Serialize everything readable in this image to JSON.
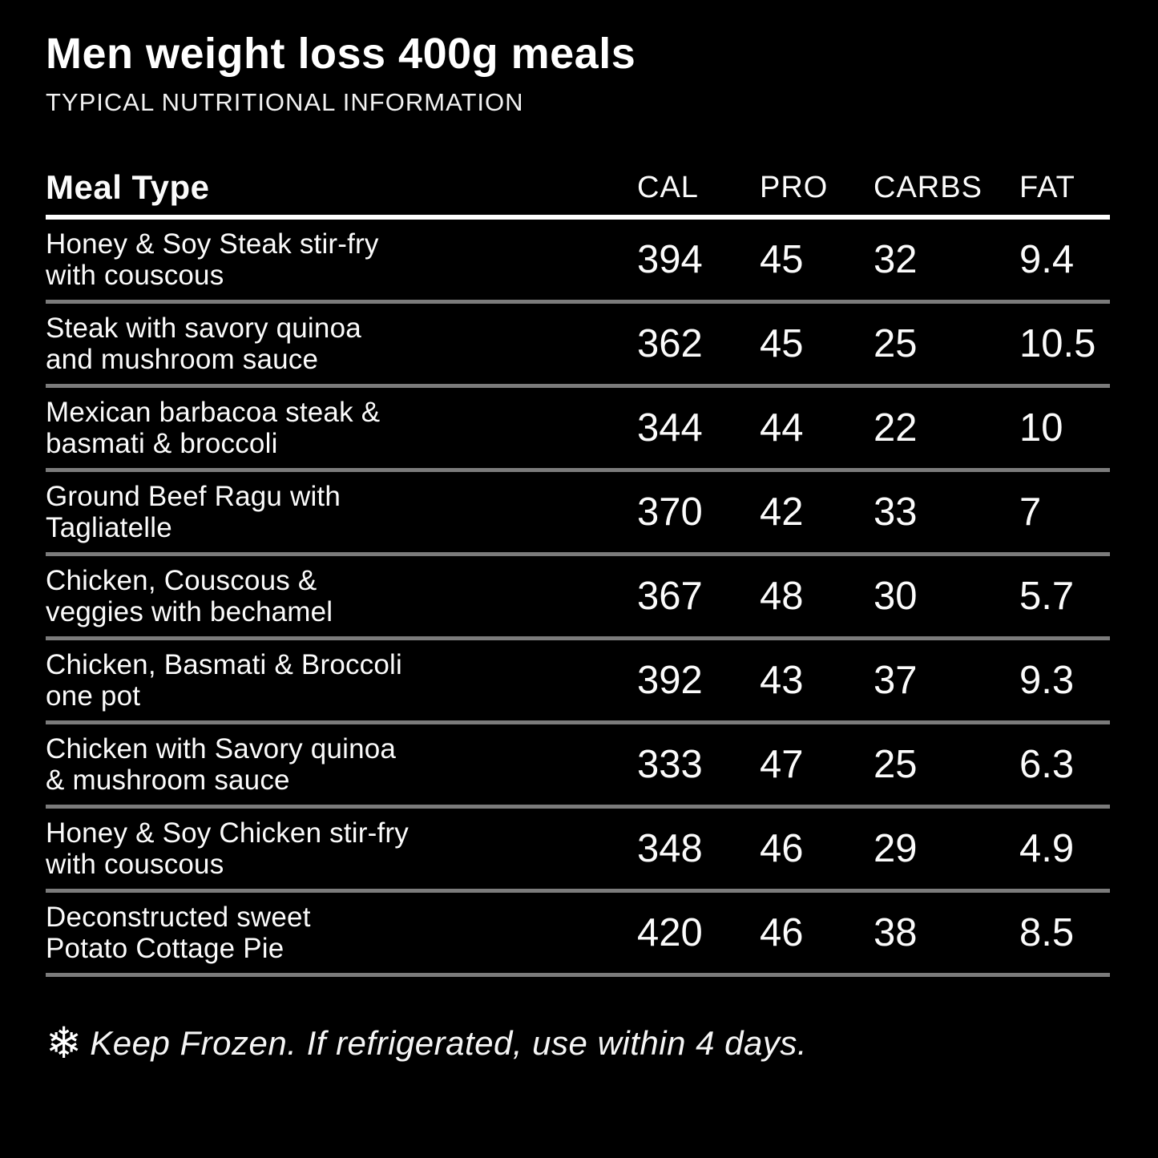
{
  "page": {
    "background": "#000000",
    "text_color": "#FBFBFB"
  },
  "header": {
    "title": "Men weight loss 400g meals",
    "subtitle": "TYPICAL NUTRITIONAL INFORMATION"
  },
  "table": {
    "meal_type_header": "Meal Type",
    "columns": [
      "CAL",
      "PRO",
      "CARBS",
      "FAT"
    ],
    "rows": [
      {
        "name_line1": "Honey & Soy Steak stir-fry",
        "name_line2": "with couscous",
        "cal": "394",
        "pro": "45",
        "carbs": "32",
        "fat": "9.4"
      },
      {
        "name_line1": "Steak with savory quinoa",
        "name_line2": "and mushroom sauce",
        "cal": "362",
        "pro": "45",
        "carbs": "25",
        "fat": "10.5"
      },
      {
        "name_line1": "Mexican barbacoa steak &",
        "name_line2": "basmati & broccoli",
        "cal": "344",
        "pro": "44",
        "carbs": "22",
        "fat": "10"
      },
      {
        "name_line1": "Ground Beef Ragu with",
        "name_line2": "Tagliatelle",
        "cal": "370",
        "pro": "42",
        "carbs": "33",
        "fat": "7"
      },
      {
        "name_line1": "Chicken, Couscous &",
        "name_line2": "veggies with bechamel",
        "cal": "367",
        "pro": "48",
        "carbs": "30",
        "fat": "5.7"
      },
      {
        "name_line1": "Chicken, Basmati & Broccoli",
        "name_line2": "one pot",
        "cal": "392",
        "pro": "43",
        "carbs": "37",
        "fat": "9.3"
      },
      {
        "name_line1": "Chicken with Savory quinoa",
        "name_line2": "& mushroom sauce",
        "cal": "333",
        "pro": "47",
        "carbs": "25",
        "fat": "6.3"
      },
      {
        "name_line1": "Honey & Soy Chicken stir-fry",
        "name_line2": "with couscous",
        "cal": "348",
        "pro": "46",
        "carbs": "29",
        "fat": "4.9"
      },
      {
        "name_line1": "Deconstructed sweet",
        "name_line2": "Potato Cottage Pie",
        "cal": "420",
        "pro": "46",
        "carbs": "38",
        "fat": "8.5"
      }
    ]
  },
  "footer": {
    "icon": "snowflake",
    "icon_glyph": "❄",
    "note": "Keep Frozen. If refrigerated, use within 4 days."
  },
  "colors": {
    "header_divider": "#FFFFFF",
    "row_divider": "#7B7B7B",
    "background": "#000000",
    "text": "#FBFBFB"
  },
  "chart_data": {
    "type": "table",
    "title": "Men weight loss 400g meals",
    "subtitle": "TYPICAL NUTRITIONAL INFORMATION",
    "columns": [
      "Meal Type",
      "CAL",
      "PRO",
      "CARBS",
      "FAT"
    ],
    "rows": [
      [
        "Honey & Soy Steak stir-fry with couscous",
        394,
        45,
        32,
        9.4
      ],
      [
        "Steak with savory quinoa and mushroom sauce",
        362,
        45,
        25,
        10.5
      ],
      [
        "Mexican barbacoa steak & basmati & broccoli",
        344,
        44,
        22,
        10
      ],
      [
        "Ground Beef Ragu with Tagliatelle",
        370,
        42,
        33,
        7
      ],
      [
        "Chicken, Couscous & veggies with bechamel",
        367,
        48,
        30,
        5.7
      ],
      [
        "Chicken, Basmati & Broccoli one pot",
        392,
        43,
        37,
        9.3
      ],
      [
        "Chicken with Savory quinoa & mushroom sauce",
        333,
        47,
        25,
        6.3
      ],
      [
        "Honey & Soy Chicken stir-fry with couscous",
        348,
        46,
        29,
        4.9
      ],
      [
        "Deconstructed sweet Potato Cottage Pie",
        420,
        46,
        38,
        8.5
      ]
    ],
    "note": "Keep Frozen. If refrigerated, use within 4 days."
  }
}
